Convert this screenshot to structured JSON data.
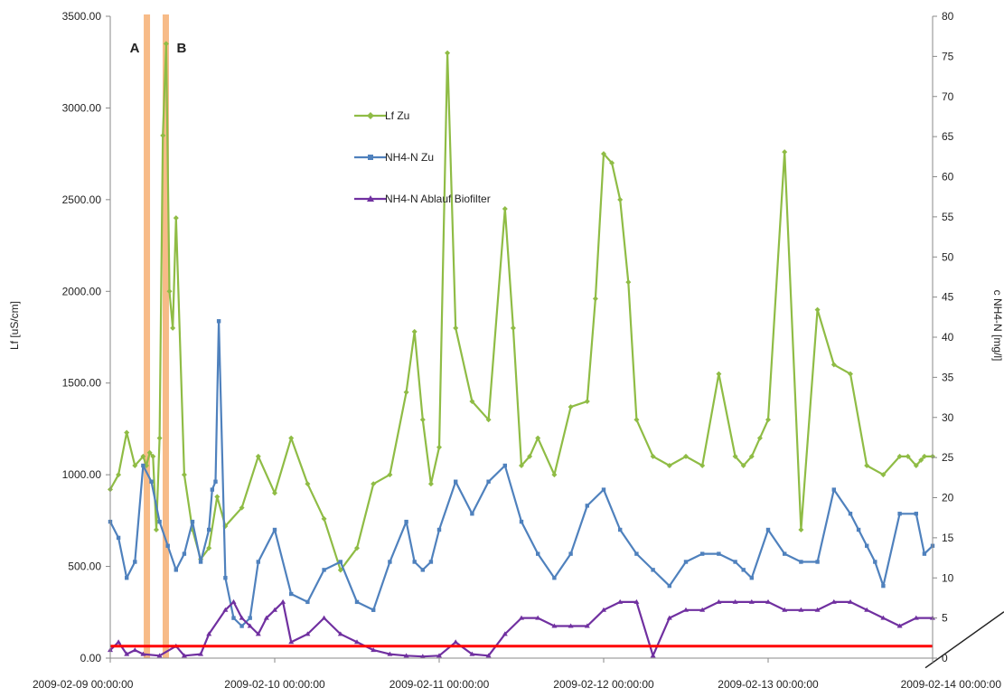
{
  "chart_data": {
    "type": "line",
    "x_ticks": [
      "2009-02-09 00:00:00",
      "2009-02-10 00:00:00",
      "2009-02-11 00:00:00",
      "2009-02-12 00:00:00",
      "2009-02-13 00:00:00",
      "2009-02-14 00:00:00"
    ],
    "y_left": {
      "label": "Lf [uS/cm]",
      "range": [
        0,
        3500
      ],
      "ticks": [
        "0.00",
        "500.00",
        "1000.00",
        "1500.00",
        "2000.00",
        "2500.00",
        "3000.00",
        "3500.00"
      ]
    },
    "y_right": {
      "label": "c NH4-N [mg/l]",
      "range": [
        0,
        80
      ],
      "ticks": [
        "0",
        "5",
        "10",
        "15",
        "20",
        "25",
        "30",
        "35",
        "40",
        "45",
        "50",
        "55",
        "60",
        "65",
        "70",
        "75",
        "80"
      ]
    },
    "markers": [
      {
        "label": "A",
        "x": 0.22
      },
      {
        "label": "B",
        "x": 0.335
      }
    ],
    "legend_position": "upper-center",
    "threshold": {
      "axis": "right",
      "value": 1.5,
      "color": "#ff0000"
    },
    "series": [
      {
        "name": "Lf Zu",
        "axis": "left",
        "color": "#8fbc45",
        "marker": "diamond",
        "x": [
          0,
          0.05,
          0.1,
          0.15,
          0.2,
          0.22,
          0.24,
          0.26,
          0.28,
          0.3,
          0.32,
          0.34,
          0.36,
          0.38,
          0.4,
          0.45,
          0.5,
          0.55,
          0.6,
          0.65,
          0.7,
          0.8,
          0.9,
          1.0,
          1.1,
          1.2,
          1.3,
          1.4,
          1.5,
          1.6,
          1.7,
          1.8,
          1.85,
          1.9,
          1.95,
          2.0,
          2.05,
          2.1,
          2.2,
          2.3,
          2.4,
          2.45,
          2.5,
          2.55,
          2.6,
          2.7,
          2.8,
          2.9,
          2.95,
          3.0,
          3.05,
          3.1,
          3.15,
          3.2,
          3.3,
          3.4,
          3.5,
          3.6,
          3.7,
          3.8,
          3.85,
          3.9,
          3.95,
          4.0,
          4.1,
          4.2,
          4.3,
          4.4,
          4.5,
          4.6,
          4.7,
          4.8,
          4.85,
          4.9,
          4.93,
          4.95,
          5.0
        ],
        "values": [
          920,
          1000,
          1230,
          1050,
          1100,
          1050,
          1120,
          1100,
          700,
          1200,
          2850,
          3350,
          2000,
          1800,
          2400,
          1000,
          700,
          540,
          600,
          880,
          720,
          820,
          1100,
          900,
          1200,
          950,
          760,
          480,
          600,
          950,
          1000,
          1450,
          1780,
          1300,
          950,
          1150,
          3300,
          1800,
          1400,
          1300,
          2450,
          1800,
          1050,
          1100,
          1200,
          1000,
          1370,
          1400,
          1960,
          2750,
          2700,
          2500,
          2050,
          1300,
          1100,
          1050,
          1100,
          1050,
          1550,
          1100,
          1050,
          1100,
          1200,
          1300,
          2760,
          700,
          1900,
          1600,
          1550,
          1050,
          1000,
          1100,
          1100,
          1050,
          1080,
          1100,
          1100
        ]
      },
      {
        "name": "NH4-N Zu",
        "axis": "right",
        "color": "#4f81bd",
        "marker": "square",
        "x": [
          0,
          0.05,
          0.1,
          0.15,
          0.2,
          0.25,
          0.3,
          0.35,
          0.4,
          0.45,
          0.5,
          0.55,
          0.6,
          0.62,
          0.64,
          0.66,
          0.7,
          0.75,
          0.8,
          0.85,
          0.9,
          1.0,
          1.1,
          1.2,
          1.3,
          1.4,
          1.5,
          1.6,
          1.7,
          1.8,
          1.85,
          1.9,
          1.95,
          2.0,
          2.1,
          2.2,
          2.3,
          2.4,
          2.5,
          2.6,
          2.7,
          2.8,
          2.9,
          3.0,
          3.1,
          3.2,
          3.3,
          3.4,
          3.5,
          3.6,
          3.7,
          3.8,
          3.85,
          3.9,
          4.0,
          4.1,
          4.2,
          4.3,
          4.4,
          4.5,
          4.55,
          4.6,
          4.65,
          4.7,
          4.8,
          4.9,
          4.95,
          5.0
        ],
        "values": [
          17,
          15,
          10,
          12,
          24,
          22,
          17,
          14,
          11,
          13,
          17,
          12,
          16,
          21,
          22,
          42,
          10,
          5,
          4,
          5,
          12,
          16,
          8,
          7,
          11,
          12,
          7,
          6,
          12,
          17,
          12,
          11,
          12,
          16,
          22,
          18,
          22,
          24,
          17,
          13,
          10,
          13,
          19,
          21,
          16,
          13,
          11,
          9,
          12,
          13,
          13,
          12,
          11,
          10,
          16,
          13,
          12,
          12,
          21,
          18,
          16,
          14,
          12,
          9,
          18,
          18,
          13,
          14
        ]
      },
      {
        "name": "NH4-N Ablauf Biofilter",
        "axis": "right",
        "color": "#7030a0",
        "marker": "triangle",
        "x": [
          0,
          0.05,
          0.1,
          0.15,
          0.2,
          0.3,
          0.4,
          0.45,
          0.55,
          0.6,
          0.7,
          0.75,
          0.8,
          0.85,
          0.9,
          0.95,
          1.0,
          1.05,
          1.1,
          1.2,
          1.3,
          1.4,
          1.5,
          1.6,
          1.7,
          1.8,
          1.9,
          2.0,
          2.1,
          2.2,
          2.3,
          2.4,
          2.5,
          2.6,
          2.7,
          2.8,
          2.9,
          3.0,
          3.1,
          3.2,
          3.3,
          3.4,
          3.5,
          3.6,
          3.7,
          3.8,
          3.9,
          4.0,
          4.1,
          4.2,
          4.3,
          4.4,
          4.5,
          4.6,
          4.7,
          4.8,
          4.9,
          5.0
        ],
        "values": [
          1,
          2,
          0.5,
          1,
          0.5,
          0.3,
          1.5,
          0.3,
          0.5,
          3,
          6,
          7,
          5,
          4,
          3,
          5,
          6,
          7,
          2,
          3,
          5,
          3,
          2,
          1,
          0.5,
          0.3,
          0.2,
          0.3,
          2,
          0.5,
          0.3,
          3,
          5,
          5,
          4,
          4,
          4,
          6,
          7,
          7,
          0.3,
          5,
          6,
          6,
          7,
          7,
          7,
          7,
          6,
          6,
          6,
          7,
          7,
          6,
          5,
          4,
          5,
          5
        ]
      }
    ]
  }
}
